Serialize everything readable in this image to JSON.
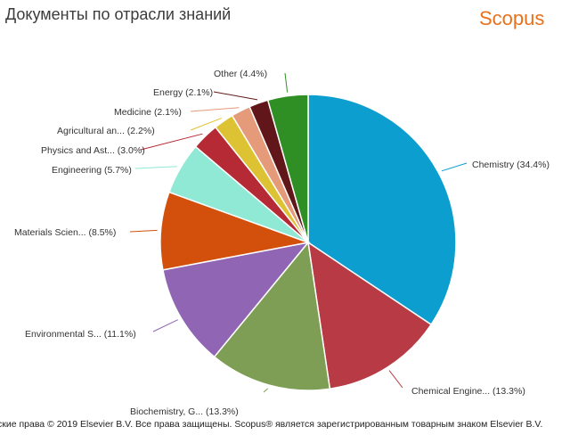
{
  "header": {
    "title": "Документы по отрасли знаний",
    "brand": "Scopus"
  },
  "footer": {
    "copyright": "ские права © 2019 Elsevier B.V. Все права защищены. Scopus® является зарегистрированным товарным знаком Elsevier B.V."
  },
  "chart_data": {
    "type": "pie",
    "start_angle_deg": 0,
    "direction": "clockwise",
    "slices": [
      {
        "label": "Chemistry (34.4%)",
        "value": 34.4,
        "color": "#0c9ecf"
      },
      {
        "label": "Chemical Engine... (13.3%)",
        "value": 13.3,
        "color": "#b73a45"
      },
      {
        "label": "Biochemistry, G... (13.3%)",
        "value": 13.3,
        "color": "#7d9e54"
      },
      {
        "label": "Environmental S... (11.1%)",
        "value": 11.1,
        "color": "#9066b4"
      },
      {
        "label": "Materials Scien... (8.5%)",
        "value": 8.5,
        "color": "#d2500c"
      },
      {
        "label": "Engineering (5.7%)",
        "value": 5.7,
        "color": "#8fe9d4"
      },
      {
        "label": "Physics and Ast... (3.0%)",
        "value": 3.0,
        "color": "#b52a34"
      },
      {
        "label": "Agricultural an... (2.2%)",
        "value": 2.2,
        "color": "#ddc234"
      },
      {
        "label": "Medicine (2.1%)",
        "value": 2.1,
        "color": "#e59a79"
      },
      {
        "label": "Energy (2.1%)",
        "value": 2.1,
        "color": "#61171a"
      },
      {
        "label": "Other (4.4%)",
        "value": 4.4,
        "color": "#2f8f24"
      }
    ]
  }
}
